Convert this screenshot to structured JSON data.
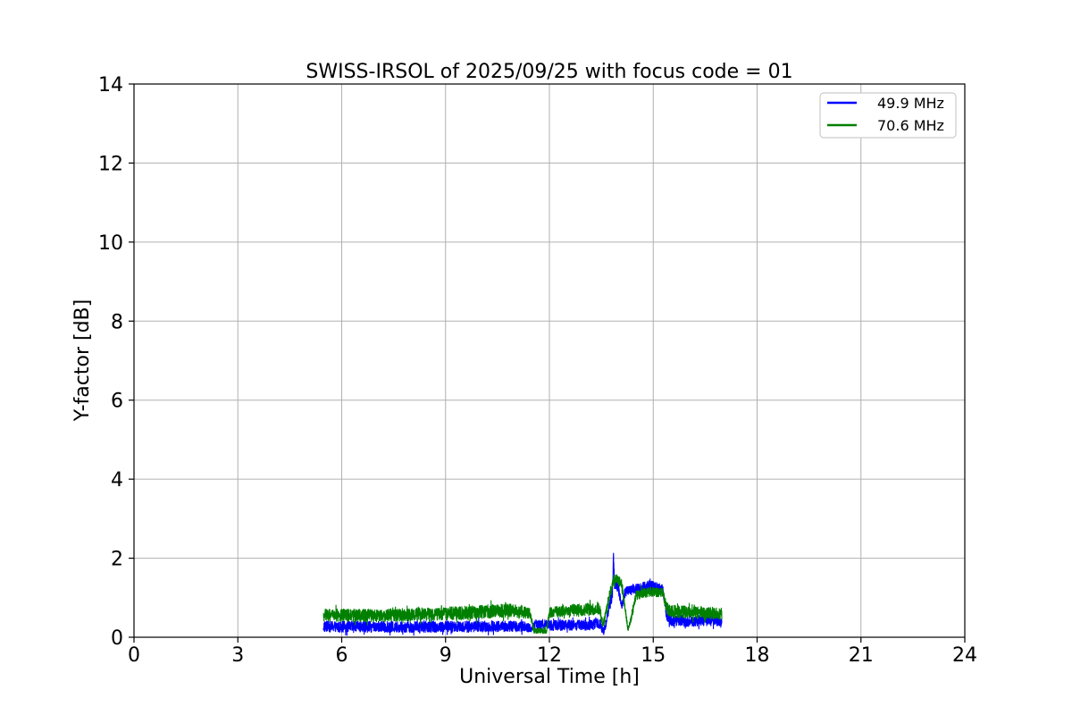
{
  "chart_data": {
    "type": "line",
    "title": "SWISS-IRSOL of 2025/09/25 with focus code = 01",
    "xlabel": "Universal Time [h]",
    "ylabel": "Y-factor [dB]",
    "xlim": [
      0,
      24
    ],
    "ylim": [
      0,
      14
    ],
    "xticks": [
      0,
      3,
      6,
      9,
      12,
      15,
      18,
      21,
      24
    ],
    "yticks": [
      0,
      2,
      4,
      6,
      8,
      10,
      12,
      14
    ],
    "grid": true,
    "legend_position": "upper-right",
    "colors": {
      "grid": "#b0b0b0",
      "spine": "#000000",
      "legend_border": "#cccccc",
      "series_blue": "#0000ff",
      "series_green": "#008000"
    },
    "x_data_range": [
      5.47,
      16.98
    ],
    "series": [
      {
        "name": "49.9 MHz",
        "color": "#0000ff",
        "style": "noisy-line",
        "keypoints_t_ydB_noise": [
          [
            5.47,
            0.27,
            0.14
          ],
          [
            8.0,
            0.26,
            0.14
          ],
          [
            10.5,
            0.28,
            0.14
          ],
          [
            11.3,
            0.27,
            0.13
          ],
          [
            11.45,
            0.22,
            0.1
          ],
          [
            11.6,
            0.3,
            0.12
          ],
          [
            11.9,
            0.32,
            0.12
          ],
          [
            12.05,
            0.3,
            0.13
          ],
          [
            13.2,
            0.31,
            0.13
          ],
          [
            13.45,
            0.35,
            0.13
          ],
          [
            13.55,
            0.15,
            0.08
          ],
          [
            13.62,
            0.3,
            0.1
          ],
          [
            13.72,
            0.75,
            0.15
          ],
          [
            13.82,
            1.1,
            0.18
          ],
          [
            13.85,
            2.1,
            0.1
          ],
          [
            13.88,
            1.35,
            0.15
          ],
          [
            13.98,
            1.3,
            0.15
          ],
          [
            14.05,
            0.95,
            0.12
          ],
          [
            14.1,
            0.8,
            0.1
          ],
          [
            14.2,
            1.15,
            0.12
          ],
          [
            14.35,
            1.2,
            0.13
          ],
          [
            14.6,
            1.22,
            0.14
          ],
          [
            14.9,
            1.3,
            0.14
          ],
          [
            15.1,
            1.28,
            0.13
          ],
          [
            15.28,
            1.2,
            0.12
          ],
          [
            15.38,
            0.55,
            0.12
          ],
          [
            15.5,
            0.42,
            0.13
          ],
          [
            16.0,
            0.4,
            0.13
          ],
          [
            16.5,
            0.42,
            0.13
          ],
          [
            16.98,
            0.4,
            0.12
          ]
        ]
      },
      {
        "name": "70.6 MHz",
        "color": "#008000",
        "style": "noisy-line",
        "keypoints_t_ydB_noise": [
          [
            5.47,
            0.56,
            0.16
          ],
          [
            7.0,
            0.55,
            0.16
          ],
          [
            9.0,
            0.6,
            0.16
          ],
          [
            10.0,
            0.64,
            0.17
          ],
          [
            10.8,
            0.68,
            0.17
          ],
          [
            11.2,
            0.65,
            0.16
          ],
          [
            11.45,
            0.58,
            0.14
          ],
          [
            11.55,
            0.17,
            0.07
          ],
          [
            11.92,
            0.16,
            0.07
          ],
          [
            12.0,
            0.62,
            0.13
          ],
          [
            12.5,
            0.68,
            0.15
          ],
          [
            13.2,
            0.7,
            0.15
          ],
          [
            13.45,
            0.72,
            0.13
          ],
          [
            13.55,
            0.3,
            0.1
          ],
          [
            13.63,
            0.6,
            0.12
          ],
          [
            13.75,
            1.1,
            0.15
          ],
          [
            13.85,
            1.42,
            0.16
          ],
          [
            13.95,
            1.45,
            0.15
          ],
          [
            14.08,
            1.35,
            0.13
          ],
          [
            14.18,
            0.8,
            0.1
          ],
          [
            14.27,
            0.2,
            0.07
          ],
          [
            14.35,
            0.45,
            0.1
          ],
          [
            14.5,
            1.05,
            0.12
          ],
          [
            14.7,
            1.12,
            0.12
          ],
          [
            15.0,
            1.15,
            0.12
          ],
          [
            15.28,
            1.12,
            0.11
          ],
          [
            15.38,
            0.75,
            0.15
          ],
          [
            15.5,
            0.65,
            0.16
          ],
          [
            16.0,
            0.64,
            0.16
          ],
          [
            16.5,
            0.62,
            0.16
          ],
          [
            16.98,
            0.6,
            0.15
          ]
        ]
      }
    ]
  }
}
